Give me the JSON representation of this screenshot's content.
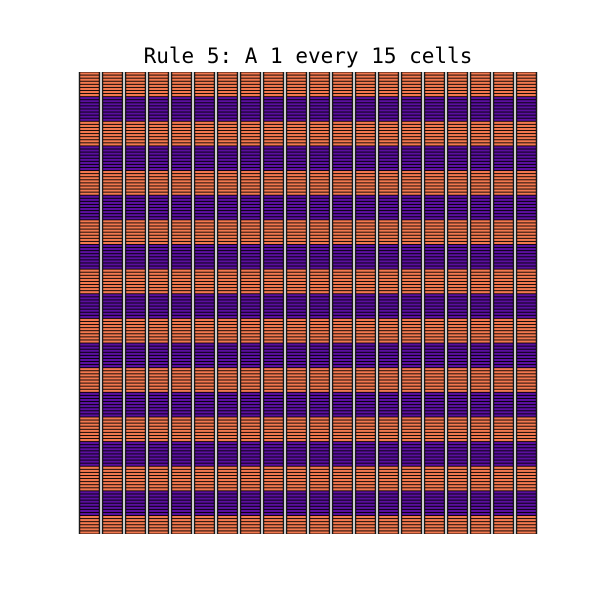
{
  "title": "Rule 5: A 1 every 15 cells",
  "grid": {
    "columns": 20,
    "rows": 150,
    "rule_period": 15,
    "description_colors": {
      "background": "#ffffff",
      "on_cell": "#f3784f",
      "off_cell": "#5b0fa0",
      "grid_line": "#000000",
      "cell_edge": "#ffffff"
    },
    "band_pattern": [
      1,
      1,
      1,
      1,
      1,
      1,
      1,
      1,
      0,
      0,
      0,
      0,
      0,
      0,
      0,
      0
    ]
  }
}
